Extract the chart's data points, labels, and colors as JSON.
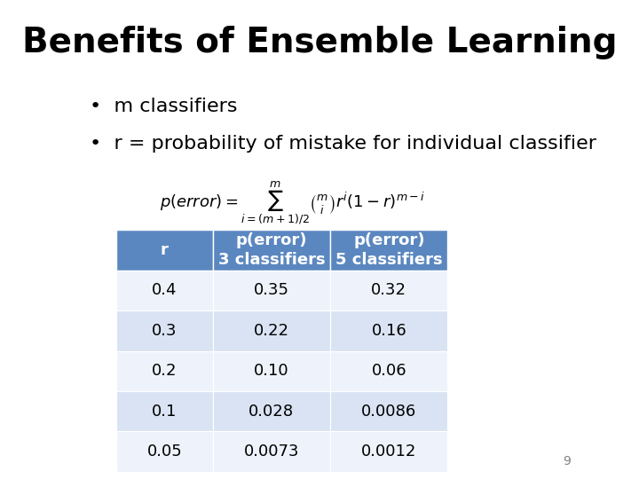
{
  "title": "Benefits of Ensemble Learning",
  "bullets": [
    "m classifiers",
    "r = probability of mistake for individual classifier"
  ],
  "formula": "p(error)= \\sum_{i=(m+1)/2}^{m} \\binom{m}{i} r^i(1-r)^{m-i}",
  "table_headers": [
    "r",
    "p(error)\n3 classifiers",
    "p(error)\n5 classifiers"
  ],
  "table_data": [
    [
      "0.4",
      "0.35",
      "0.32"
    ],
    [
      "0.3",
      "0.22",
      "0.16"
    ],
    [
      "0.2",
      "0.10",
      "0.06"
    ],
    [
      "0.1",
      "0.028",
      "0.0086"
    ],
    [
      "0.05",
      "0.0073",
      "0.0012"
    ]
  ],
  "header_color": "#5B87C0",
  "row_color_even": "#DAE3F3",
  "row_color_odd": "#EEF3FB",
  "bg_color": "#FFFFFF",
  "title_fontsize": 28,
  "bullet_fontsize": 16,
  "table_fontsize": 13,
  "page_number": "9"
}
